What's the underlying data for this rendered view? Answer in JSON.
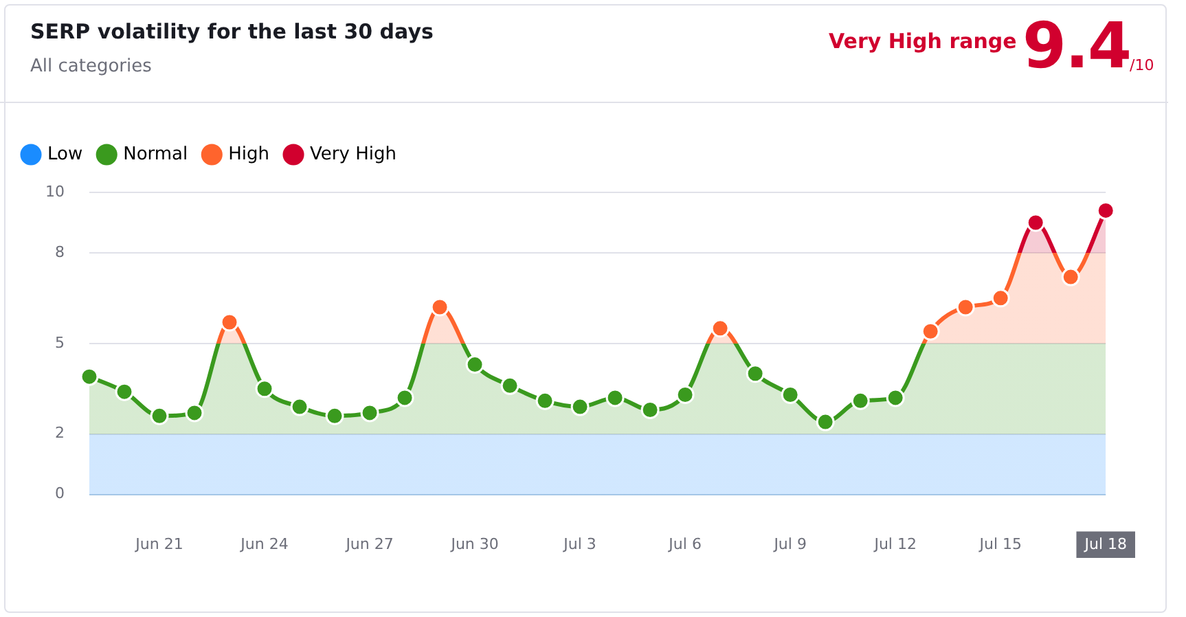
{
  "chart_data": {
    "type": "area",
    "title": "SERP volatility for the last 30 days",
    "subtitle": "All categories",
    "annotations": [
      "Very High range",
      "9.4",
      "/10"
    ],
    "categories": [
      null,
      null,
      "Jun 21",
      null,
      null,
      "Jun 24",
      null,
      null,
      "Jun 27",
      null,
      null,
      "Jun 30",
      null,
      null,
      "Jul 3",
      null,
      null,
      "Jul 6",
      null,
      null,
      "Jul 9",
      null,
      null,
      "Jul 12",
      null,
      null,
      "Jul 15",
      null,
      null,
      "Jul 18"
    ],
    "values": [
      3.9,
      3.4,
      2.6,
      2.7,
      5.7,
      3.5,
      2.9,
      2.6,
      2.7,
      3.2,
      6.2,
      4.3,
      3.6,
      3.1,
      2.9,
      3.2,
      2.8,
      3.3,
      5.5,
      4.0,
      3.3,
      2.4,
      3.1,
      3.2,
      5.4,
      6.2,
      6.5,
      9.0,
      7.2,
      9.4
    ],
    "bands": [
      {
        "axis": "y",
        "from": 0,
        "to": 2,
        "label": "Low",
        "color": "#1a8cff"
      },
      {
        "axis": "y",
        "from": 2,
        "to": 5,
        "label": "Normal",
        "color": "#3a9a1e"
      },
      {
        "axis": "y",
        "from": 5,
        "to": 8,
        "label": "High",
        "color": "#ff642d"
      },
      {
        "axis": "y",
        "from": 8,
        "to": 10,
        "label": "Very High",
        "color": "#d1002e"
      }
    ],
    "ylim": [
      0,
      10
    ],
    "yticks": [
      0,
      2,
      5,
      8,
      10
    ],
    "grid": "y",
    "legend": "top left",
    "marker": "circle"
  }
}
